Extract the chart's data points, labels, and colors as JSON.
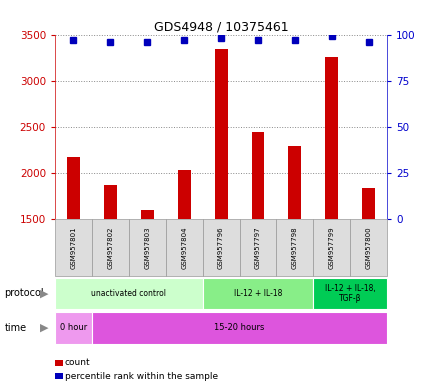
{
  "title": "GDS4948 / 10375461",
  "samples": [
    "GSM957801",
    "GSM957802",
    "GSM957803",
    "GSM957804",
    "GSM957796",
    "GSM957797",
    "GSM957798",
    "GSM957799",
    "GSM957800"
  ],
  "counts": [
    2170,
    1870,
    1600,
    2030,
    3340,
    2440,
    2290,
    3260,
    1840
  ],
  "percentile_ranks": [
    97,
    96,
    96,
    97,
    98,
    97,
    97,
    99,
    96
  ],
  "ylim_left": [
    1500,
    3500
  ],
  "ylim_right": [
    0,
    100
  ],
  "yticks_left": [
    1500,
    2000,
    2500,
    3000,
    3500
  ],
  "yticks_right": [
    0,
    25,
    50,
    75,
    100
  ],
  "left_tick_color": "#cc0000",
  "right_tick_color": "#0000cc",
  "protocol_groups": [
    {
      "label": "unactivated control",
      "start": 0,
      "end": 4,
      "color": "#ccffcc"
    },
    {
      "label": "IL-12 + IL-18",
      "start": 4,
      "end": 7,
      "color": "#88ee88"
    },
    {
      "label": "IL-12 + IL-18,\nTGF-β",
      "start": 7,
      "end": 9,
      "color": "#00cc55"
    }
  ],
  "time_groups": [
    {
      "label": "0 hour",
      "start": 0,
      "end": 1,
      "color": "#ee99ee"
    },
    {
      "label": "15-20 hours",
      "start": 1,
      "end": 9,
      "color": "#dd55dd"
    }
  ],
  "bar_color": "#cc0000",
  "dot_color": "#0000bb",
  "sample_bg_color": "#dddddd",
  "sample_border_color": "#999999",
  "legend_count_color": "#cc0000",
  "legend_pct_color": "#0000bb",
  "bg_color": "#ffffff",
  "grid_color": "#888888"
}
